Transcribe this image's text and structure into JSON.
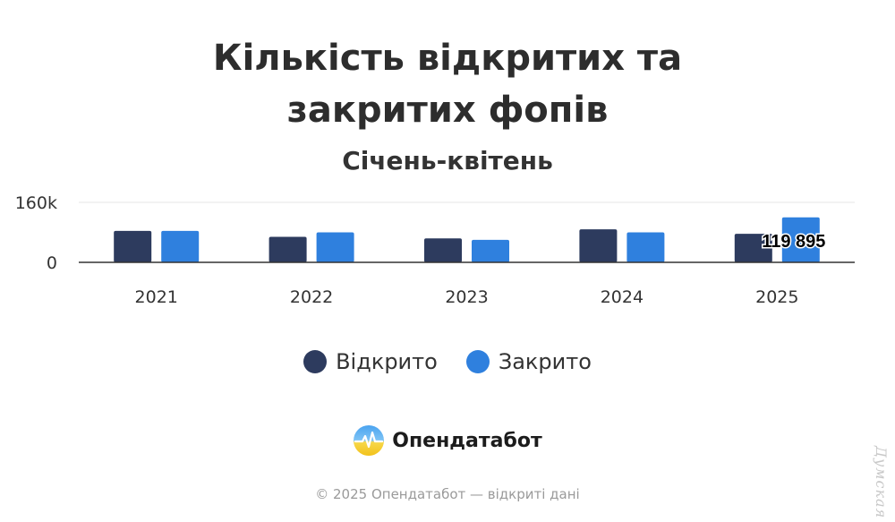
{
  "chart_data": {
    "type": "bar",
    "title": "Кількість відкритих та закритих фопів",
    "subtitle": "Січень-квітень",
    "categories": [
      "2021",
      "2022",
      "2023",
      "2024",
      "2025"
    ],
    "series": [
      {
        "name": "Відкрито",
        "color": "#2d3b5e",
        "values": [
          84000,
          68000,
          64000,
          88000,
          76000
        ]
      },
      {
        "name": "Закрито",
        "color": "#2f80de",
        "values": [
          84000,
          80000,
          60000,
          80000,
          119895
        ]
      }
    ],
    "ylim": [
      0,
      160000
    ],
    "yticks": [
      {
        "value": 0,
        "label": "0"
      },
      {
        "value": 160000,
        "label": "160k"
      }
    ],
    "grid": true,
    "legend_position": "bottom",
    "annotations": [
      {
        "series": 1,
        "category": "2025",
        "text": "119 895"
      }
    ]
  },
  "brand": {
    "name": "Опендатабот",
    "logo_icon": "opendatabot-logo-icon"
  },
  "footer": "© 2025 Опендатабот — відкриті дані",
  "watermark": "Думская"
}
